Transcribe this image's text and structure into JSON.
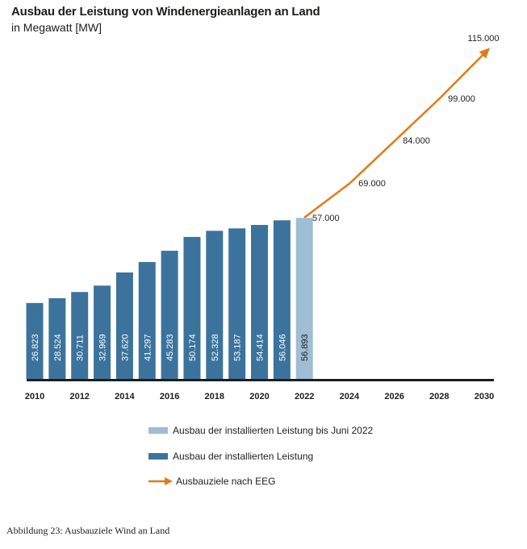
{
  "title": "Ausbau der Leistung von Windenergieanlagen an Land",
  "subtitle": "in Megawatt [MW]",
  "caption": "Abbildung 23: Ausbauziele Wind an Land",
  "colors": {
    "installed": "#3b739c",
    "partial": "#9fbdd4",
    "target": "#e07b17",
    "axis": "#1d1d1b"
  },
  "legend": {
    "partial": "Ausbau der installierten Leistung bis Juni 2022",
    "installed": "Ausbau der installierten Leistung",
    "target": "Ausbauziele nach EEG"
  },
  "chart_data": {
    "type": "bar",
    "x_tick_labels": [
      "2010",
      "2012",
      "2014",
      "2016",
      "2018",
      "2020",
      "2022",
      "2024",
      "2026",
      "2028",
      "2030"
    ],
    "series": [
      {
        "name": "Ausbau der installierten Leistung",
        "type": "bar",
        "x": [
          2010,
          2011,
          2012,
          2013,
          2014,
          2015,
          2016,
          2017,
          2018,
          2019,
          2020,
          2021
        ],
        "values": [
          26823,
          28524,
          30711,
          32969,
          37620,
          41297,
          45283,
          50174,
          52328,
          53187,
          54414,
          56046
        ],
        "labels": [
          "26.823",
          "28.524",
          "30.711",
          "32.969",
          "37.620",
          "41.297",
          "45.283",
          "50.174",
          "52.328",
          "53.187",
          "54.414",
          "56.046"
        ]
      },
      {
        "name": "Ausbau der installierten Leistung bis Juni 2022",
        "type": "bar",
        "x": [
          2022
        ],
        "values": [
          56893
        ],
        "labels": [
          "56.893"
        ]
      },
      {
        "name": "Ausbauziele nach EEG",
        "type": "line",
        "x": [
          2022,
          2024,
          2026,
          2028,
          2030
        ],
        "values": [
          57000,
          69000,
          84000,
          99000,
          115000
        ],
        "labels": [
          "57.000",
          "69.000",
          "84.000",
          "99.000",
          "115.000"
        ]
      }
    ],
    "xlim": [
      2009.6,
      2030.4
    ],
    "ylim": [
      0,
      115000
    ],
    "grid": false,
    "legend_position": "bottom"
  }
}
